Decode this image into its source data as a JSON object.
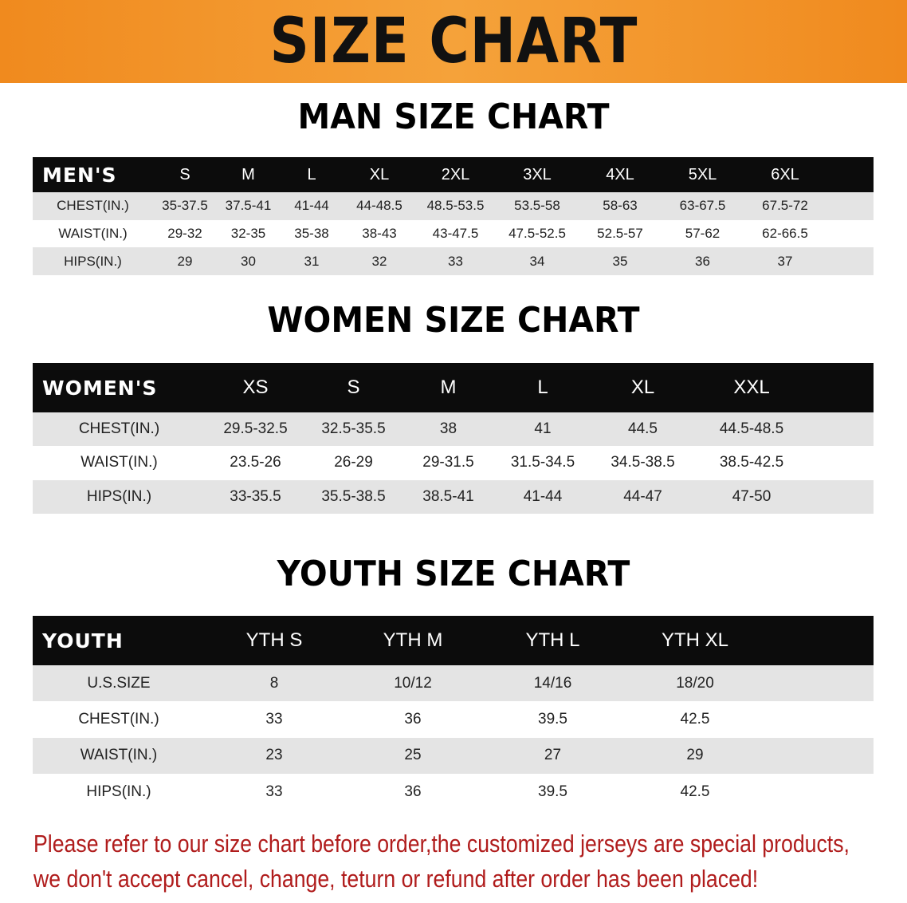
{
  "banner_title": "SIZE CHART",
  "men": {
    "title": "MAN SIZE CHART",
    "header": [
      "MEN'S",
      "S",
      "M",
      "L",
      "XL",
      "2XL",
      "3XL",
      "4XL",
      "5XL",
      "6XL"
    ],
    "rows": [
      [
        "CHEST(IN.)",
        "35-37.5",
        "37.5-41",
        "41-44",
        "44-48.5",
        "48.5-53.5",
        "53.5-58",
        "58-63",
        "63-67.5",
        "67.5-72"
      ],
      [
        "WAIST(IN.)",
        "29-32",
        "32-35",
        "35-38",
        "38-43",
        "43-47.5",
        "47.5-52.5",
        "52.5-57",
        "57-62",
        "62-66.5"
      ],
      [
        "HIPS(IN.)",
        "29",
        "30",
        "31",
        "32",
        "33",
        "34",
        "35",
        "36",
        "37"
      ]
    ]
  },
  "women": {
    "title": "WOMEN SIZE CHART",
    "header": [
      "WOMEN'S",
      "XS",
      "S",
      "M",
      "L",
      "XL",
      "XXL"
    ],
    "rows": [
      [
        "CHEST(IN.)",
        "29.5-32.5",
        "32.5-35.5",
        "38",
        "41",
        "44.5",
        "44.5-48.5"
      ],
      [
        "WAIST(IN.)",
        "23.5-26",
        "26-29",
        "29-31.5",
        "31.5-34.5",
        "34.5-38.5",
        "38.5-42.5"
      ],
      [
        "HIPS(IN.)",
        "33-35.5",
        "35.5-38.5",
        "38.5-41",
        "41-44",
        "44-47",
        "47-50"
      ]
    ]
  },
  "youth": {
    "title": "YOUTH SIZE CHART",
    "header": [
      "YOUTH",
      "YTH S",
      "YTH M",
      "YTH L",
      "YTH XL"
    ],
    "rows": [
      [
        "U.S.SIZE",
        "8",
        "10/12",
        "14/16",
        "18/20"
      ],
      [
        "CHEST(IN.)",
        "33",
        "36",
        "39.5",
        "42.5"
      ],
      [
        "WAIST(IN.)",
        "23",
        "25",
        "27",
        "29"
      ],
      [
        "HIPS(IN.)",
        "33",
        "36",
        "39.5",
        "42.5"
      ]
    ]
  },
  "notice": {
    "line1": "Please refer to our size chart before order,the customized jerseys are special products,",
    "line2": "we don't accept cancel, change, teturn or refund after order has been placed!"
  },
  "colors": {
    "banner": "#f08a1e",
    "header_bg": "#0c0c0c",
    "row_gray": "#e4e4e4",
    "notice_text": "#b01c1c"
  }
}
